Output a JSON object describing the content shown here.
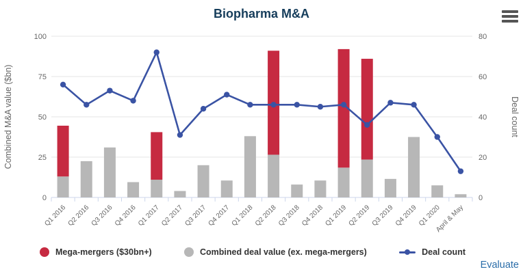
{
  "header": {
    "title": "Biopharma M&A",
    "title_color": "#163d5b"
  },
  "export_menu": {
    "icon": "hamburger-menu-icon",
    "color": "#545454"
  },
  "credit": {
    "label": "Evaluate",
    "color": "#2a6da9"
  },
  "legend": {
    "items": [
      {
        "label": "Mega-mergers ($30bn+)",
        "marker": "circle",
        "color": "#c62a41"
      },
      {
        "label": "Combined deal value (ex. mega-mergers)",
        "marker": "circle",
        "color": "#b7b7b7"
      },
      {
        "label": "Deal count",
        "marker": "line-dot",
        "color": "#3a53a4"
      }
    ]
  },
  "chart_data": {
    "type": "bar",
    "subtype": "stacked-column-with-line",
    "title": "Biopharma M&A",
    "categories": [
      "Q1 2016",
      "Q2 2016",
      "Q3 2016",
      "Q4 2016",
      "Q1 2017",
      "Q2 2017",
      "Q3 2017",
      "Q4 2017",
      "Q1 2018",
      "Q2 2018",
      "Q3 2018",
      "Q4 2018",
      "Q1 2019",
      "Q2 2019",
      "Q3 2019",
      "Q4 2019",
      "Q1 2020",
      "April & May"
    ],
    "series": [
      {
        "name": "Mega-mergers ($30bn+)",
        "type": "column",
        "stack": "value",
        "axis": "left",
        "color": "#c62a41",
        "values": [
          31.5,
          0,
          0,
          0,
          29.5,
          0,
          0,
          0,
          0,
          64.5,
          0,
          0,
          73.5,
          62.5,
          0,
          0,
          0,
          0
        ]
      },
      {
        "name": "Combined deal value (ex. mega-mergers)",
        "type": "column",
        "stack": "value",
        "axis": "left",
        "color": "#b7b7b7",
        "values": [
          13,
          22.5,
          31,
          9.5,
          11,
          4,
          20,
          10.5,
          38,
          26.5,
          8,
          10.5,
          18.5,
          23.5,
          11.5,
          37.5,
          7.5,
          2
        ]
      },
      {
        "name": "Deal count",
        "type": "line",
        "axis": "right",
        "color": "#3a53a4",
        "values": [
          56,
          46,
          53,
          48,
          72,
          31,
          44,
          51,
          46,
          46,
          46,
          45,
          46,
          36,
          47,
          46,
          30,
          13
        ]
      }
    ],
    "left_axis": {
      "title": "Combined M&A value ($bn)",
      "min": 0,
      "max": 100,
      "ticks": [
        0,
        25,
        50,
        75,
        100
      ]
    },
    "right_axis": {
      "title": "Deal count",
      "min": 0,
      "max": 80,
      "ticks": [
        0,
        20,
        40,
        60,
        80
      ]
    },
    "grid": true,
    "grid_color": "#e6e6e6",
    "axis_line_color": "#ccd6eb",
    "axis_text_color": "#666666",
    "legend_position": "bottom"
  }
}
